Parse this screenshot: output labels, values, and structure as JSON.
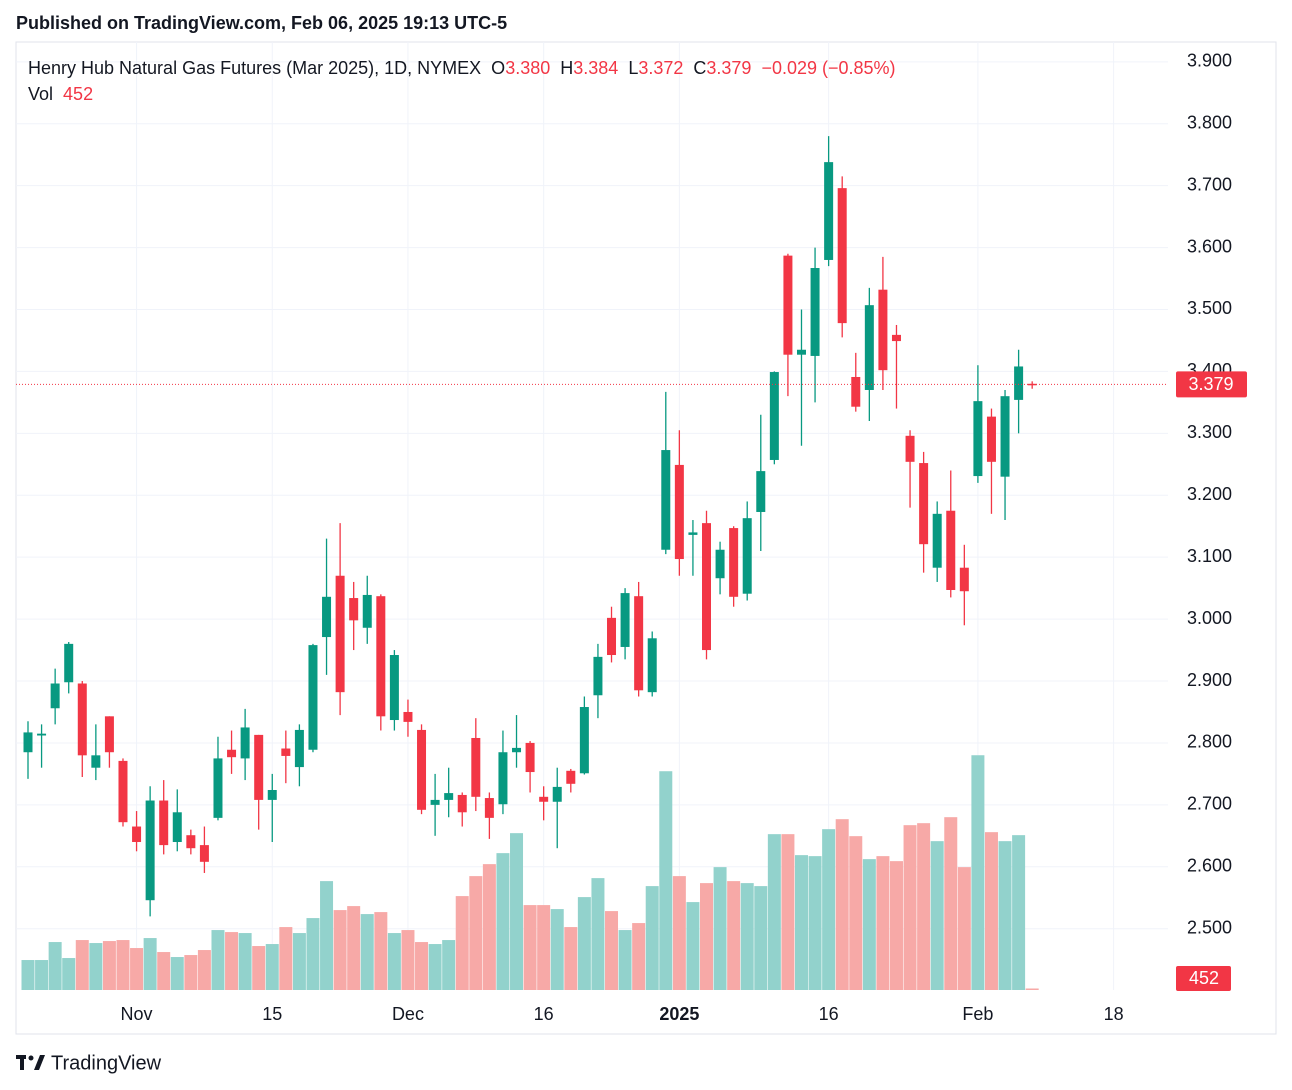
{
  "header": {
    "published": "Published on TradingView.com, Feb 06, 2025 19:13 UTC-5"
  },
  "footer": {
    "brand": "TradingView"
  },
  "chart_data": {
    "type": "candlestick",
    "categories": [
      null,
      null,
      null,
      null,
      null,
      null,
      null,
      null,
      "Nov",
      null,
      null,
      null,
      null,
      null,
      null,
      null,
      null,
      null,
      "15",
      null,
      null,
      null,
      null,
      null,
      null,
      null,
      null,
      null,
      "Dec",
      null,
      null,
      null,
      null,
      null,
      null,
      null,
      null,
      null,
      "16",
      null,
      null,
      null,
      null,
      null,
      null,
      null,
      null,
      null,
      "2025",
      null,
      null,
      null,
      null,
      null,
      null,
      null,
      null,
      null,
      null,
      "16",
      null,
      null,
      null,
      null,
      null,
      null,
      null,
      null,
      null,
      null,
      "Feb",
      null,
      null,
      null,
      null,
      null,
      null,
      null,
      null,
      null,
      "18"
    ],
    "series": [
      {
        "name": "Henry Hub Natural Gas Futures (Mar 2025), 1D, NYMEX",
        "open": [
          2.785,
          2.812,
          2.856,
          2.898,
          2.896,
          2.76,
          2.843,
          2.771,
          2.665,
          2.546,
          2.707,
          2.64,
          2.651,
          2.635,
          2.679,
          2.789,
          2.775,
          2.813,
          2.708,
          2.791,
          2.761,
          2.789,
          2.971,
          3.07,
          3.034,
          2.986,
          3.037,
          2.837,
          2.85,
          2.821,
          2.7,
          2.708,
          2.716,
          2.808,
          2.711,
          2.701,
          2.785,
          2.8,
          2.713,
          2.705,
          2.755,
          2.751,
          2.877,
          3.002,
          2.955,
          3.037,
          2.882,
          3.112,
          3.249,
          3.136,
          3.155,
          3.066,
          3.147,
          3.041,
          3.173,
          3.257,
          3.587,
          3.427,
          3.425,
          3.58,
          3.696,
          3.391,
          3.37,
          3.532,
          3.459,
          3.296,
          3.252,
          3.083,
          3.175,
          3.083,
          3.231,
          3.327,
          3.23,
          3.354,
          3.38,
          null,
          null,
          null,
          null,
          null,
          null
        ],
        "high": [
          2.835,
          2.83,
          2.92,
          2.963,
          2.9,
          2.83,
          2.843,
          2.775,
          2.69,
          2.73,
          2.74,
          2.725,
          2.66,
          2.665,
          2.81,
          2.82,
          2.855,
          2.813,
          2.75,
          2.82,
          2.83,
          2.96,
          3.13,
          3.155,
          3.06,
          3.07,
          3.04,
          2.95,
          2.87,
          2.83,
          2.75,
          2.76,
          2.72,
          2.84,
          2.72,
          2.82,
          2.845,
          2.803,
          2.73,
          2.76,
          2.758,
          2.875,
          2.96,
          3.02,
          3.05,
          3.06,
          2.98,
          3.367,
          3.305,
          3.16,
          3.175,
          3.125,
          3.15,
          3.19,
          3.33,
          3.4,
          3.59,
          3.5,
          3.6,
          3.78,
          3.715,
          3.43,
          3.535,
          3.585,
          3.475,
          3.305,
          3.27,
          3.19,
          3.24,
          3.12,
          3.41,
          3.34,
          3.37,
          3.435,
          3.384,
          null,
          null,
          null,
          null,
          null,
          null
        ],
        "low": [
          2.742,
          2.76,
          2.83,
          2.88,
          2.745,
          2.74,
          2.76,
          2.665,
          2.625,
          2.52,
          2.62,
          2.625,
          2.62,
          2.59,
          2.675,
          2.75,
          2.74,
          2.66,
          2.64,
          2.735,
          2.73,
          2.785,
          2.91,
          2.845,
          2.95,
          2.96,
          2.82,
          2.82,
          2.81,
          2.685,
          2.65,
          2.68,
          2.665,
          2.69,
          2.645,
          2.685,
          2.76,
          2.72,
          2.675,
          2.63,
          2.72,
          2.749,
          2.84,
          2.93,
          2.935,
          2.875,
          2.875,
          3.105,
          3.07,
          3.07,
          2.935,
          3.04,
          3.02,
          3.03,
          3.11,
          3.25,
          3.36,
          3.28,
          3.35,
          3.57,
          3.455,
          3.335,
          3.32,
          3.37,
          3.34,
          3.18,
          3.075,
          3.06,
          3.035,
          2.99,
          3.22,
          3.17,
          3.16,
          3.3,
          3.372,
          null,
          null,
          null,
          null,
          null,
          null
        ],
        "close": [
          2.817,
          2.815,
          2.896,
          2.96,
          2.78,
          2.78,
          2.785,
          2.672,
          2.64,
          2.707,
          2.635,
          2.688,
          2.63,
          2.608,
          2.775,
          2.777,
          2.825,
          2.708,
          2.724,
          2.779,
          2.821,
          2.958,
          3.036,
          2.882,
          2.998,
          3.039,
          2.843,
          2.942,
          2.834,
          2.692,
          2.708,
          2.719,
          2.688,
          2.713,
          2.679,
          2.785,
          2.792,
          2.753,
          2.705,
          2.729,
          2.734,
          2.858,
          2.939,
          2.942,
          3.042,
          2.885,
          2.969,
          3.273,
          3.097,
          3.14,
          2.95,
          3.112,
          3.036,
          3.163,
          3.239,
          3.399,
          3.427,
          3.435,
          3.567,
          3.738,
          3.478,
          3.343,
          3.507,
          3.402,
          3.449,
          3.254,
          3.121,
          3.17,
          3.047,
          3.045,
          3.352,
          3.254,
          3.36,
          3.408,
          3.379,
          null,
          null,
          null,
          null,
          null,
          null
        ]
      }
    ],
    "volume": {
      "name": "Vol",
      "values": [
        9000,
        9000,
        14400,
        9600,
        15000,
        14100,
        14700,
        15000,
        12600,
        15600,
        11400,
        9900,
        10500,
        12000,
        18000,
        17400,
        17100,
        13200,
        13800,
        18900,
        17100,
        21600,
        32700,
        24000,
        25200,
        22800,
        23400,
        17100,
        18000,
        14400,
        13800,
        15000,
        28200,
        34200,
        37800,
        41100,
        47100,
        25500,
        25500,
        24300,
        18900,
        27900,
        33600,
        23700,
        18000,
        20100,
        31200,
        65700,
        34200,
        26400,
        32100,
        36900,
        32700,
        32100,
        31200,
        46800,
        46800,
        40500,
        40200,
        48300,
        51300,
        46200,
        39300,
        40200,
        38700,
        49500,
        50100,
        44700,
        51900,
        36900,
        70500,
        47400,
        44700,
        46500,
        452,
        null,
        null,
        null,
        null,
        null,
        null
      ]
    },
    "vlim": [
      0,
      100000
    ],
    "legend": {
      "o": "O",
      "open": "3.380",
      "h": "H",
      "high": "3.384",
      "l": "L",
      "low": "3.372",
      "c": "C",
      "close": "3.379",
      "change": "−0.029 (−0.85%)"
    },
    "ylim": [
      2.401,
      3.932
    ],
    "yticks": [
      {
        "value": 2.5,
        "label": "2.500"
      },
      {
        "value": 2.6,
        "label": "2.600"
      },
      {
        "value": 2.7,
        "label": "2.700"
      },
      {
        "value": 2.8,
        "label": "2.800"
      },
      {
        "value": 2.9,
        "label": "2.900"
      },
      {
        "value": 3.0,
        "label": "3.000"
      },
      {
        "value": 3.1,
        "label": "3.100"
      },
      {
        "value": 3.2,
        "label": "3.200"
      },
      {
        "value": 3.3,
        "label": "3.300"
      },
      {
        "value": 3.4,
        "label": "3.400"
      },
      {
        "value": 3.5,
        "label": "3.500"
      },
      {
        "value": 3.6,
        "label": "3.600"
      },
      {
        "value": 3.7,
        "label": "3.700"
      },
      {
        "value": 3.8,
        "label": "3.800"
      },
      {
        "value": 3.9,
        "label": "3.900"
      }
    ],
    "grid": true,
    "up_color": "#089981",
    "down_color": "#f23645",
    "up_volume_color": "#92d2cc",
    "down_volume_color": "#f7a9a7"
  }
}
